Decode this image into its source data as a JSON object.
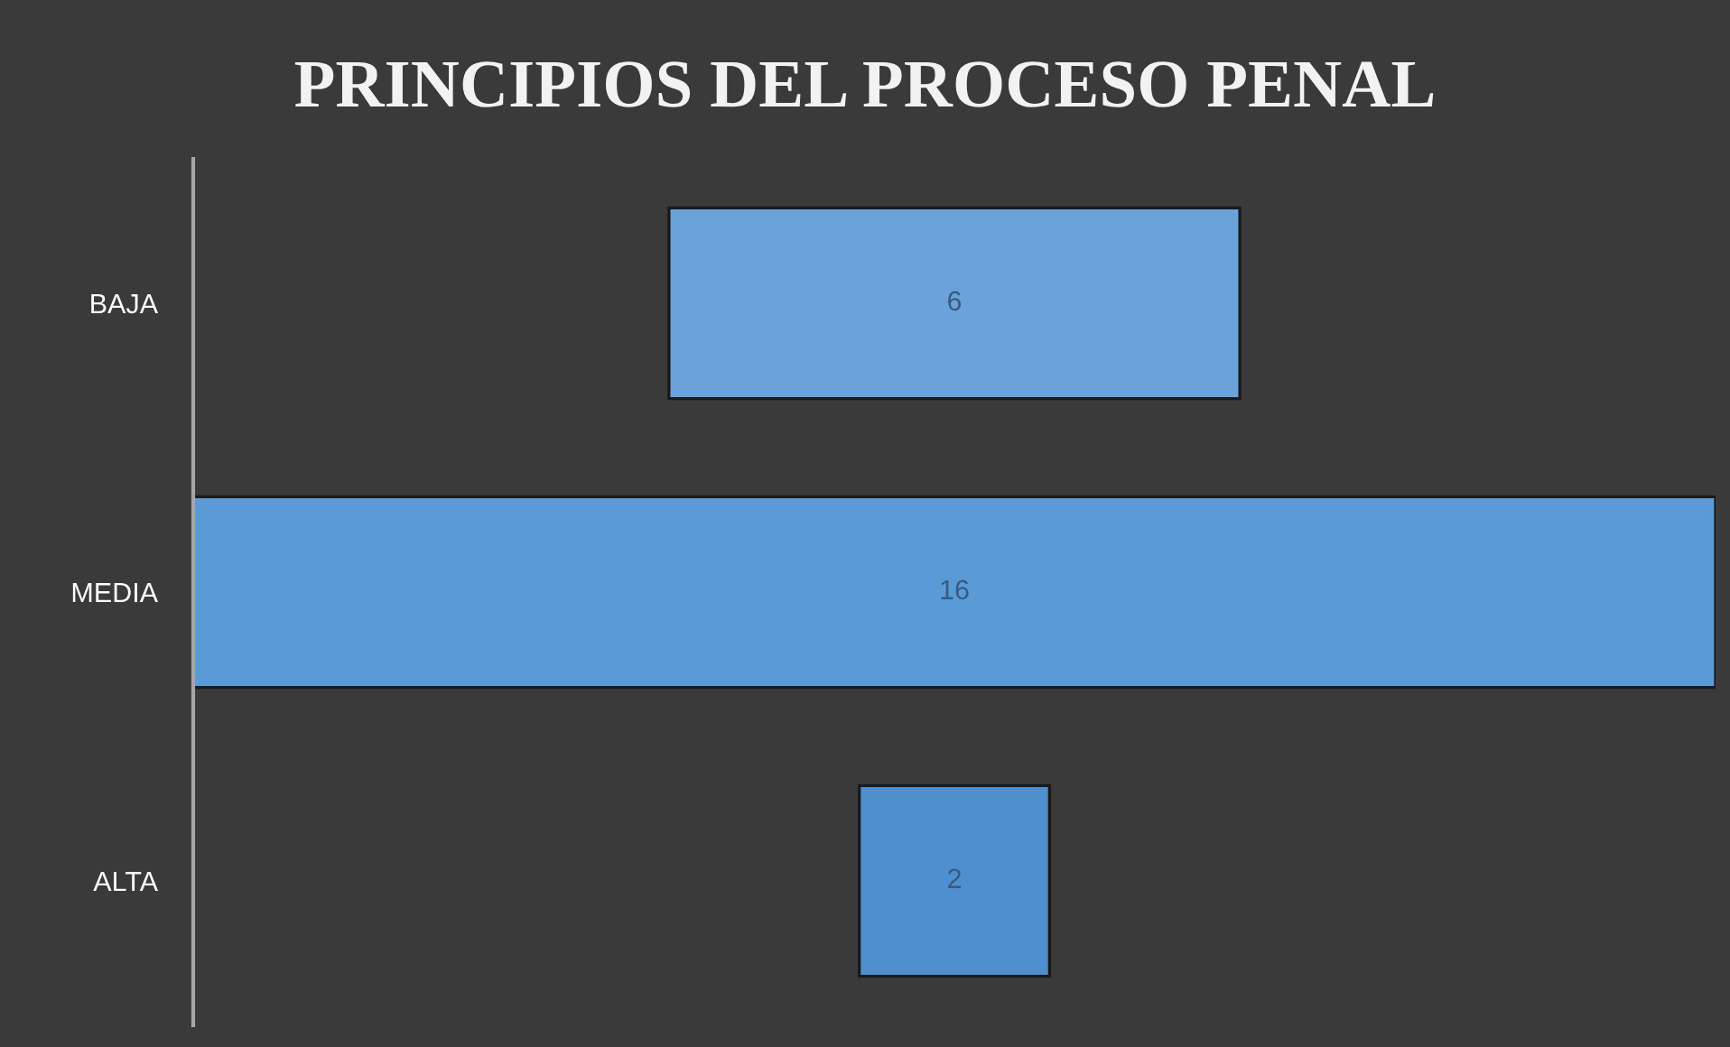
{
  "chart_data": {
    "type": "other",
    "title": "PRINCIPIOS DEL PROCESO PENAL",
    "categories": [
      "BAJA",
      "MEDIA",
      "ALTA"
    ],
    "values": [
      6,
      16,
      2
    ],
    "colors": [
      "#6aa3dc",
      "#5b9bd5",
      "#4d8fcf"
    ],
    "data_labels": true
  }
}
